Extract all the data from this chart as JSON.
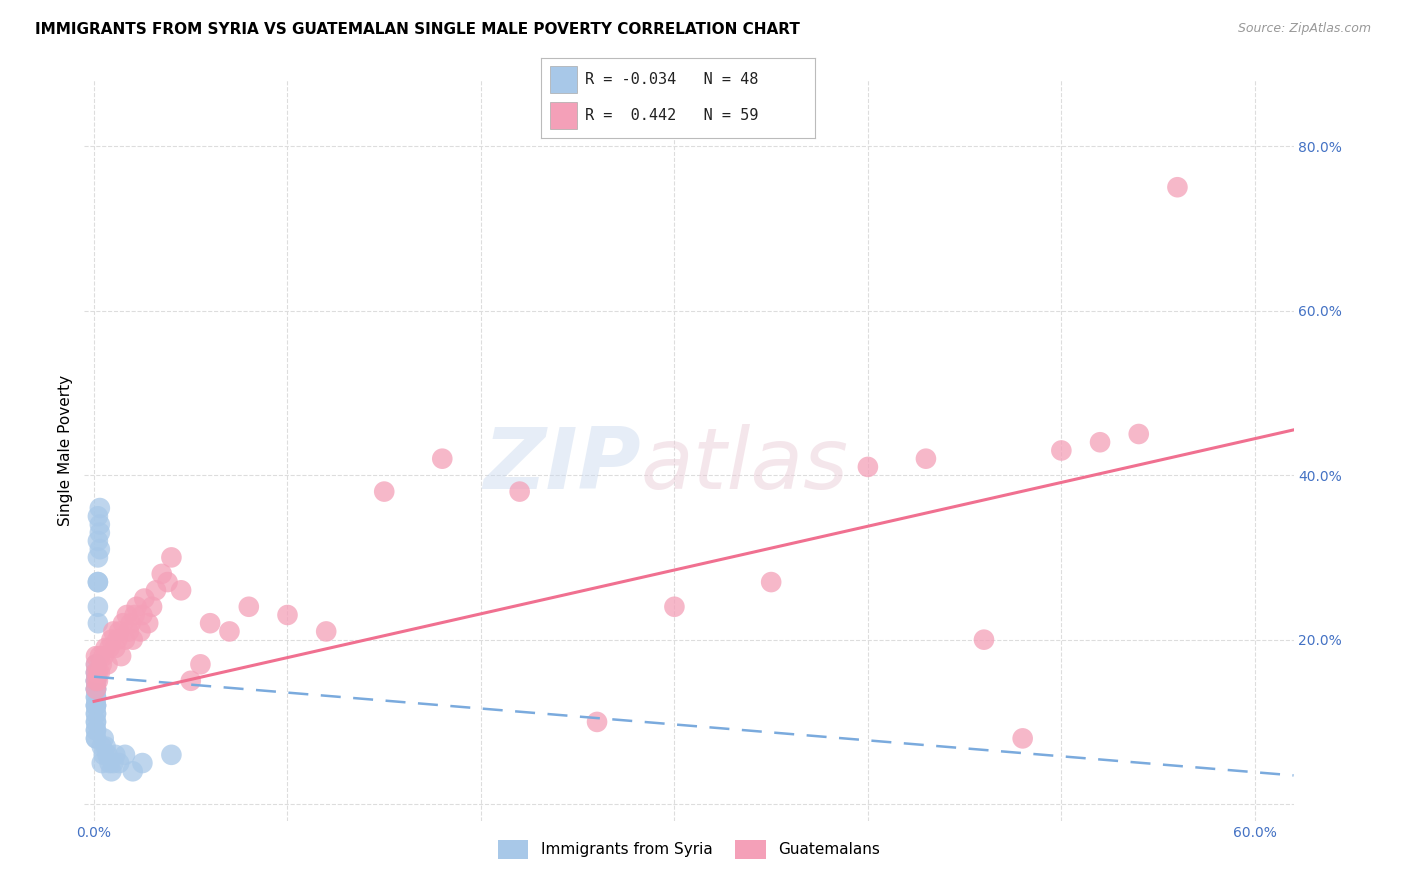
{
  "title": "IMMIGRANTS FROM SYRIA VS GUATEMALAN SINGLE MALE POVERTY CORRELATION CHART",
  "source": "Source: ZipAtlas.com",
  "ylabel": "Single Male Poverty",
  "xlabel": "",
  "xlim": [
    -0.005,
    0.62
  ],
  "ylim": [
    -0.02,
    0.88
  ],
  "yticks": [
    0.0,
    0.2,
    0.4,
    0.6,
    0.8
  ],
  "ytick_labels": [
    "",
    "20.0%",
    "40.0%",
    "60.0%",
    "80.0%"
  ],
  "xticks": [
    0.0,
    0.1,
    0.2,
    0.3,
    0.4,
    0.5,
    0.6
  ],
  "xtick_labels": [
    "0.0%",
    "",
    "",
    "",
    "",
    "",
    "60.0%"
  ],
  "legend_r_syria": "-0.034",
  "legend_n_syria": "48",
  "legend_r_guatemalan": "0.442",
  "legend_n_guatemalan": "59",
  "syria_color": "#a8c8e8",
  "guatemala_color": "#f4a0b8",
  "syria_line_color": "#7aaadd",
  "guatemala_line_color": "#f07090",
  "background_color": "#ffffff",
  "grid_color": "#dddddd",
  "tick_color": "#4472c4",
  "syria_line_x": [
    0.0,
    0.62
  ],
  "syria_line_y": [
    0.155,
    0.035
  ],
  "guatemala_line_x": [
    0.0,
    0.62
  ],
  "guatemala_line_y": [
    0.125,
    0.455
  ],
  "syria_points_x": [
    0.001,
    0.001,
    0.001,
    0.001,
    0.001,
    0.001,
    0.001,
    0.001,
    0.001,
    0.001,
    0.001,
    0.001,
    0.001,
    0.001,
    0.001,
    0.001,
    0.001,
    0.001,
    0.001,
    0.001,
    0.001,
    0.001,
    0.002,
    0.002,
    0.002,
    0.002,
    0.002,
    0.002,
    0.002,
    0.003,
    0.003,
    0.003,
    0.003,
    0.004,
    0.004,
    0.005,
    0.005,
    0.006,
    0.007,
    0.008,
    0.009,
    0.01,
    0.011,
    0.013,
    0.016,
    0.02,
    0.025,
    0.04
  ],
  "syria_points_y": [
    0.08,
    0.09,
    0.1,
    0.11,
    0.12,
    0.13,
    0.14,
    0.14,
    0.15,
    0.15,
    0.15,
    0.16,
    0.08,
    0.09,
    0.1,
    0.11,
    0.12,
    0.12,
    0.13,
    0.14,
    0.16,
    0.17,
    0.22,
    0.24,
    0.27,
    0.3,
    0.27,
    0.32,
    0.35,
    0.36,
    0.34,
    0.33,
    0.31,
    0.05,
    0.07,
    0.06,
    0.08,
    0.07,
    0.06,
    0.05,
    0.04,
    0.05,
    0.06,
    0.05,
    0.06,
    0.04,
    0.05,
    0.06
  ],
  "guatemala_points_x": [
    0.001,
    0.001,
    0.001,
    0.001,
    0.001,
    0.002,
    0.002,
    0.003,
    0.003,
    0.004,
    0.005,
    0.006,
    0.007,
    0.008,
    0.009,
    0.01,
    0.011,
    0.012,
    0.013,
    0.014,
    0.015,
    0.016,
    0.017,
    0.018,
    0.019,
    0.02,
    0.021,
    0.022,
    0.024,
    0.025,
    0.026,
    0.028,
    0.03,
    0.032,
    0.035,
    0.038,
    0.04,
    0.045,
    0.05,
    0.055,
    0.06,
    0.07,
    0.08,
    0.1,
    0.12,
    0.15,
    0.18,
    0.22,
    0.26,
    0.3,
    0.35,
    0.4,
    0.43,
    0.46,
    0.48,
    0.5,
    0.52,
    0.54,
    0.56
  ],
  "guatemala_points_y": [
    0.14,
    0.15,
    0.16,
    0.17,
    0.18,
    0.15,
    0.16,
    0.16,
    0.18,
    0.17,
    0.18,
    0.19,
    0.17,
    0.19,
    0.2,
    0.21,
    0.19,
    0.2,
    0.21,
    0.18,
    0.22,
    0.2,
    0.23,
    0.21,
    0.22,
    0.2,
    0.23,
    0.24,
    0.21,
    0.23,
    0.25,
    0.22,
    0.24,
    0.26,
    0.28,
    0.27,
    0.3,
    0.26,
    0.15,
    0.17,
    0.22,
    0.21,
    0.24,
    0.23,
    0.21,
    0.38,
    0.42,
    0.38,
    0.1,
    0.24,
    0.27,
    0.41,
    0.42,
    0.2,
    0.08,
    0.43,
    0.44,
    0.45,
    0.75
  ]
}
